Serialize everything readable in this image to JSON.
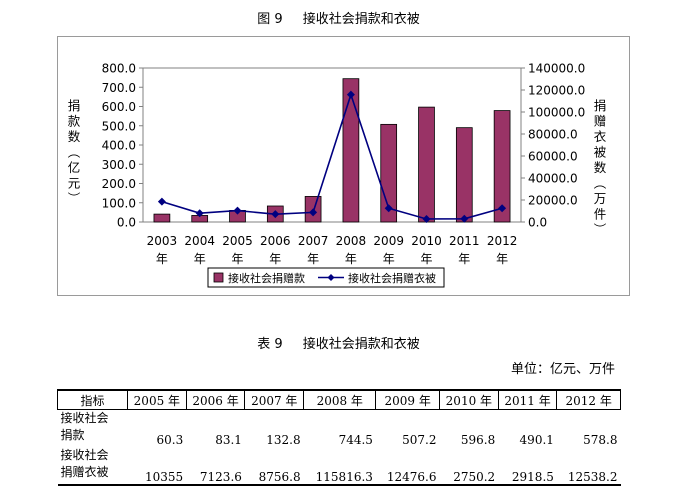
{
  "figure": {
    "number": "图 9",
    "title": "接收社会捐款和衣被"
  },
  "chart_data": {
    "type": "bar+line",
    "categories": [
      "2003年",
      "2004年",
      "2005年",
      "2006年",
      "2007年",
      "2008年",
      "2009年",
      "2010年",
      "2011年",
      "2012年"
    ],
    "y_left": {
      "label": "捐款数（亿元）",
      "ylim": [
        0,
        800
      ],
      "ticks": [
        "0.0",
        "100.0",
        "200.0",
        "300.0",
        "400.0",
        "500.0",
        "600.0",
        "700.0",
        "800.0"
      ]
    },
    "y_right": {
      "label": "捐赠衣被数（万件）",
      "ylim": [
        0,
        140000
      ],
      "ticks": [
        "0.0",
        "20000.0",
        "40000.0",
        "60000.0",
        "80000.0",
        "100000.0",
        "120000.0",
        "140000.0"
      ]
    },
    "series": [
      {
        "name": "接收社会捐赠款",
        "type": "bar",
        "axis": "left",
        "color": "#993366",
        "values": [
          41,
          34,
          60.3,
          83.1,
          132.8,
          744.5,
          507.2,
          596.8,
          490.1,
          578.8
        ]
      },
      {
        "name": "接收社会捐赠衣被",
        "type": "line",
        "axis": "right",
        "color": "#000080",
        "values": [
          18500,
          8000,
          10355,
          7123.6,
          8756.8,
          115816.3,
          12476.6,
          2750.2,
          2918.5,
          12538.2
        ]
      }
    ],
    "legend": "bottom",
    "grid": false
  },
  "table": {
    "number": "表 9",
    "title": "接收社会捐款和衣被",
    "unit": "单位：亿元、万件",
    "headers": [
      "指标",
      "2005 年",
      "2006 年",
      "2007 年",
      "2008 年",
      "2009 年",
      "2010 年",
      "2011 年",
      "2012 年"
    ],
    "rows": [
      {
        "label": "接收社会\n捐款",
        "values": [
          "60.3",
          "83.1",
          "132.8",
          "744.5",
          "507.2",
          "596.8",
          "490.1",
          "578.8"
        ]
      },
      {
        "label": "接收社会\n捐赠衣被",
        "values": [
          "10355",
          "7123.6",
          "8756.8",
          "115816.3",
          "12476.6",
          "2750.2",
          "2918.5",
          "12538.2"
        ]
      }
    ]
  }
}
